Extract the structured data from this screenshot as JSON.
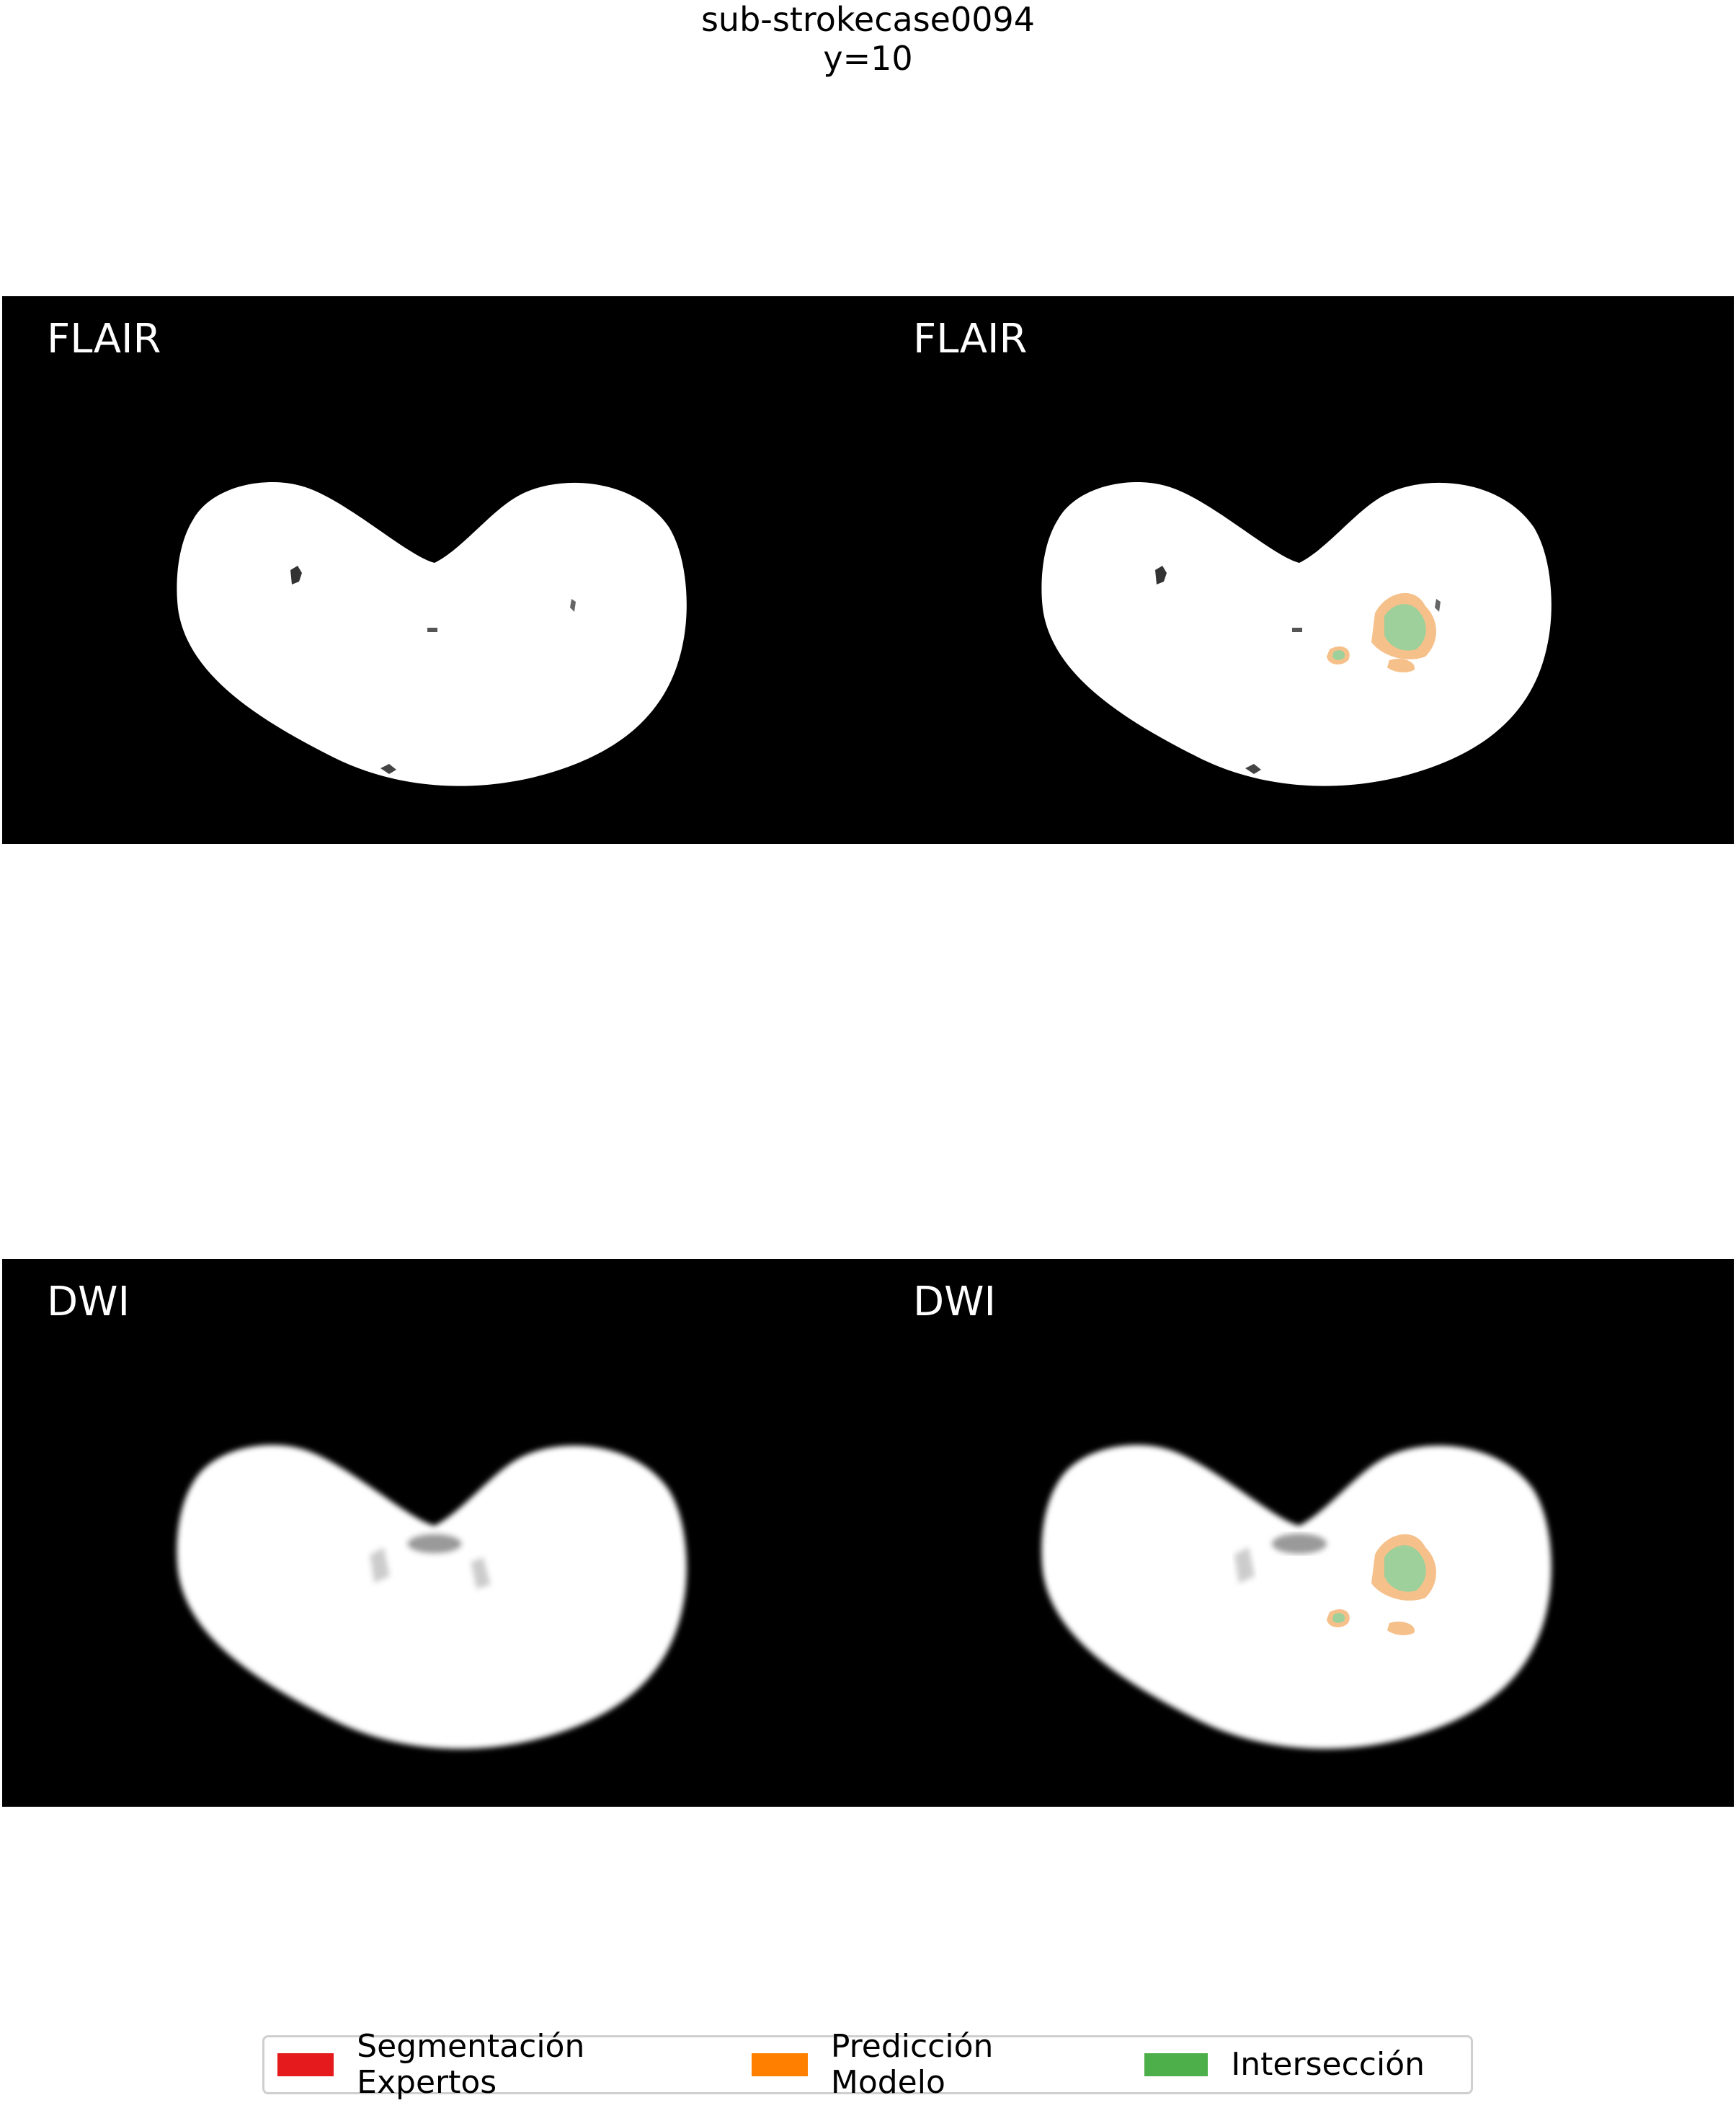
{
  "figure": {
    "title_line1": "sub-strokecase0094",
    "title_line2": "y=10"
  },
  "panels": {
    "top_left_label": "FLAIR",
    "top_right_label": "FLAIR",
    "bottom_left_label": "DWI",
    "bottom_right_label": "DWI"
  },
  "legend": {
    "items": [
      {
        "label": "Segmentación Expertos",
        "color": "#e41a1c"
      },
      {
        "label": "Predicción Modelo",
        "color": "#ff7f00"
      },
      {
        "label": "Intersección",
        "color": "#4daf4a"
      }
    ]
  },
  "colors": {
    "background": "#000000",
    "tissue": "#ffffff",
    "overlay_prediction": "#f6c08a",
    "overlay_intersection": "#9dd09a"
  }
}
